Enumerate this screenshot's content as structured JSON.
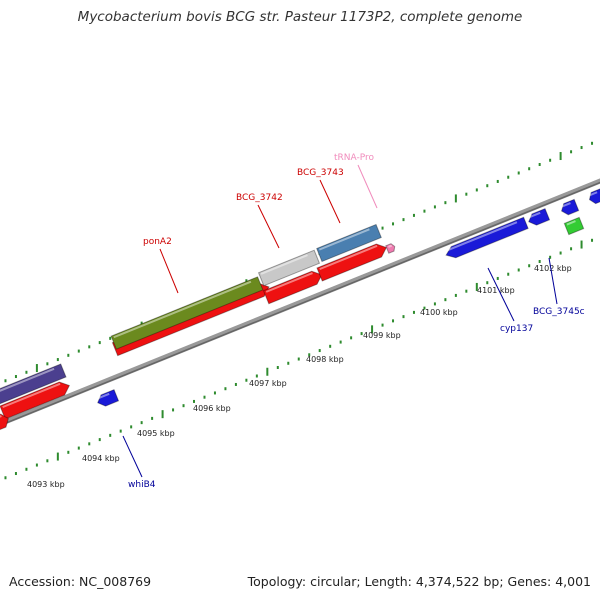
{
  "title": "Mycobacterium bovis BCG str. Pasteur 1173P2, complete genome",
  "footer": {
    "accession": "Accession: NC_008769",
    "summary": "Topology: circular; Length: 4,374,522 bp; Genes: 4,001"
  },
  "colors": {
    "gene_red": "#ee1111",
    "gene_blue": "#1a1ad8",
    "gene_green": "#6b8a1e",
    "gene_grey": "#c8c8c8",
    "gene_steelblue": "#4a7fb0",
    "gene_purple": "#4b3f8f",
    "gene_lightgreen": "#33cc33",
    "trna_pink": "#f07bb0",
    "backbone": "#777777",
    "tick_green": "#2e8b2e",
    "label_red": "#cc0000",
    "label_blue": "#000099",
    "label_pink": "#f08cbc"
  },
  "scale_labels": [
    "4093 kbp",
    "4094 kbp",
    "4095 kbp",
    "4096 kbp",
    "4097 kbp",
    "4098 kbp",
    "4099 kbp",
    "4100 kbp",
    "4101 kbp",
    "4102 kbp"
  ],
  "gene_labels": [
    {
      "name": "ponA2",
      "strand": "forward"
    },
    {
      "name": "BCG_3742",
      "strand": "forward"
    },
    {
      "name": "BCG_3743",
      "strand": "forward"
    },
    {
      "name": "tRNA-Pro",
      "strand": "forward"
    },
    {
      "name": "cyp137",
      "strand": "reverse"
    },
    {
      "name": "BCG_3745c",
      "strand": "reverse"
    },
    {
      "name": "whiB4",
      "strand": "reverse"
    }
  ]
}
